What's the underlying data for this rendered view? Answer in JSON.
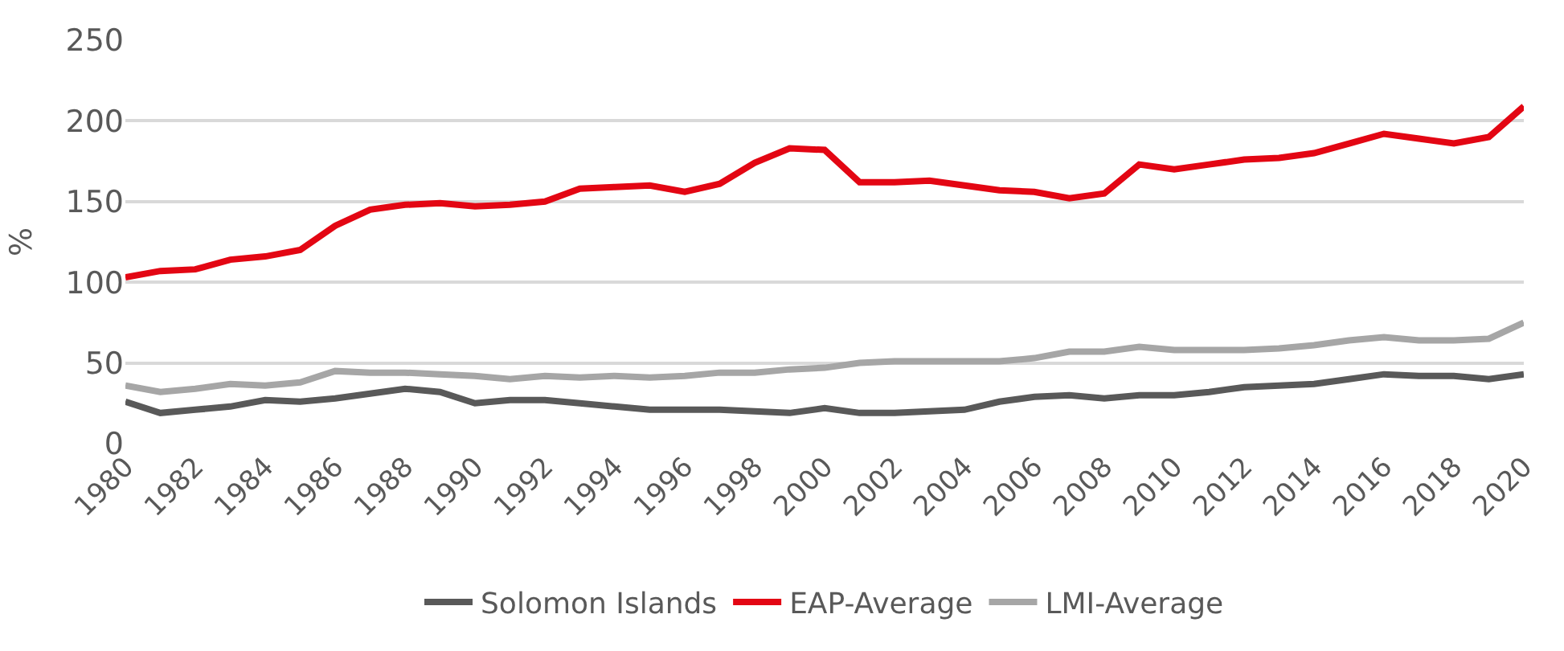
{
  "chart_data": {
    "type": "line",
    "ylabel": "%",
    "x": [
      1980,
      1981,
      1982,
      1983,
      1984,
      1985,
      1986,
      1987,
      1988,
      1989,
      1990,
      1991,
      1992,
      1993,
      1994,
      1995,
      1996,
      1997,
      1998,
      1999,
      2000,
      2001,
      2002,
      2003,
      2004,
      2005,
      2006,
      2007,
      2008,
      2009,
      2010,
      2011,
      2012,
      2013,
      2014,
      2015,
      2016,
      2017,
      2018,
      2019,
      2020
    ],
    "series": [
      {
        "name": "Solomon Islands",
        "color": "#595959",
        "values": [
          26,
          19,
          21,
          23,
          27,
          26,
          28,
          31,
          34,
          32,
          25,
          27,
          27,
          25,
          23,
          21,
          21,
          21,
          20,
          19,
          22,
          19,
          19,
          20,
          21,
          26,
          29,
          30,
          28,
          30,
          30,
          32,
          35,
          36,
          37,
          40,
          43,
          42,
          42,
          40,
          43
        ]
      },
      {
        "name": "EAP-Average",
        "color": "#e30613",
        "values": [
          103,
          107,
          108,
          114,
          116,
          120,
          135,
          145,
          148,
          149,
          147,
          148,
          150,
          158,
          159,
          160,
          156,
          161,
          174,
          183,
          182,
          162,
          162,
          163,
          160,
          157,
          156,
          152,
          155,
          173,
          170,
          173,
          176,
          177,
          180,
          186,
          192,
          189,
          186,
          190,
          209
        ]
      },
      {
        "name": "LMI-Average",
        "color": "#a6a6a6",
        "values": [
          36,
          32,
          34,
          37,
          36,
          38,
          45,
          44,
          44,
          43,
          42,
          40,
          42,
          41,
          42,
          41,
          42,
          44,
          44,
          46,
          47,
          50,
          51,
          51,
          51,
          51,
          53,
          57,
          57,
          60,
          58,
          58,
          58,
          59,
          61,
          64,
          66,
          64,
          64,
          65,
          75
        ]
      }
    ],
    "xlim": [
      1980,
      2020
    ],
    "xticks": [
      1980,
      1982,
      1984,
      1986,
      1988,
      1990,
      1992,
      1994,
      1996,
      1998,
      2000,
      2002,
      2004,
      2006,
      2008,
      2010,
      2012,
      2014,
      2016,
      2018,
      2020
    ],
    "ylim": [
      0,
      250
    ],
    "yticks": [
      0,
      50,
      100,
      150,
      200,
      250
    ],
    "grid": "y",
    "legend": "bottom",
    "marker": "none",
    "line_style": "solid"
  }
}
